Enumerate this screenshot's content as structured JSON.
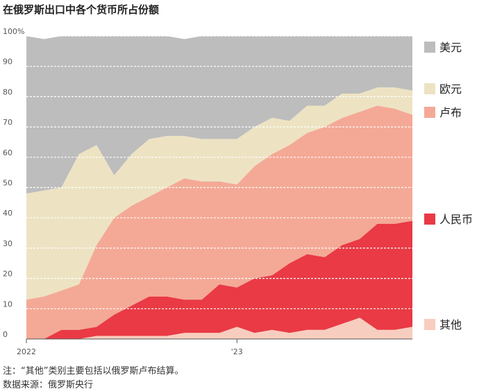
{
  "chart_data": {
    "type": "area",
    "title": "在俄罗斯出口中各个货币所占份额",
    "xlabel": "",
    "ylabel": "",
    "ylim": [
      0,
      100
    ],
    "y_ticks": [
      "100%",
      "90",
      "80",
      "70",
      "60",
      "50",
      "40",
      "30",
      "20",
      "10",
      "0"
    ],
    "x_ticks": [
      {
        "label": "2022",
        "index": 0
      },
      {
        "label": "'23",
        "index": 12
      }
    ],
    "grid": true,
    "legend_placement": "right",
    "stacking": "cumulative-percent",
    "periods": 23,
    "series": [
      {
        "name": "其他",
        "color": "#f7cdbf",
        "values": [
          0,
          0,
          0,
          0,
          1,
          1,
          1,
          1,
          1,
          2,
          2,
          2,
          4,
          2,
          3,
          2,
          3,
          3,
          5,
          7,
          3,
          3,
          4
        ]
      },
      {
        "name": "人民币",
        "color": "#e93a45",
        "values": [
          0,
          0,
          3,
          3,
          4,
          8,
          11,
          14,
          14,
          13,
          13,
          18,
          17,
          20,
          21,
          25,
          28,
          27,
          31,
          33,
          38,
          38,
          39
        ]
      },
      {
        "name": "卢布",
        "color": "#f4a996",
        "values": [
          13,
          14,
          16,
          18,
          31,
          40,
          44,
          47,
          50,
          53,
          52,
          52,
          51,
          57,
          61,
          64,
          68,
          70,
          73,
          75,
          77,
          76,
          74
        ]
      },
      {
        "name": "欧元",
        "color": "#ede3c3",
        "values": [
          48,
          49,
          50,
          61,
          64,
          54,
          61,
          66,
          67,
          67,
          66,
          66,
          66,
          70,
          73,
          72,
          77,
          77,
          81,
          81,
          83,
          83,
          82
        ]
      },
      {
        "name": "美元",
        "color": "#bdbdbd",
        "values": [
          100,
          99,
          100,
          100,
          100,
          100,
          100,
          100,
          100,
          99,
          100,
          100,
          100,
          100,
          100,
          100,
          100,
          100,
          100,
          100,
          100,
          100,
          100
        ]
      }
    ],
    "legend": [
      {
        "name": "美元",
        "color": "#bdbdbd"
      },
      {
        "name": "欧元",
        "color": "#ede3c3"
      },
      {
        "name": "卢布",
        "color": "#f4a996"
      },
      {
        "name": "人民币",
        "color": "#e93a45"
      },
      {
        "name": "其他",
        "color": "#f7cdbf"
      }
    ]
  },
  "notes": {
    "note": "注：“其他”类别主要包括以俄罗斯卢布结算。",
    "source": "数据来源：俄罗斯央行"
  }
}
